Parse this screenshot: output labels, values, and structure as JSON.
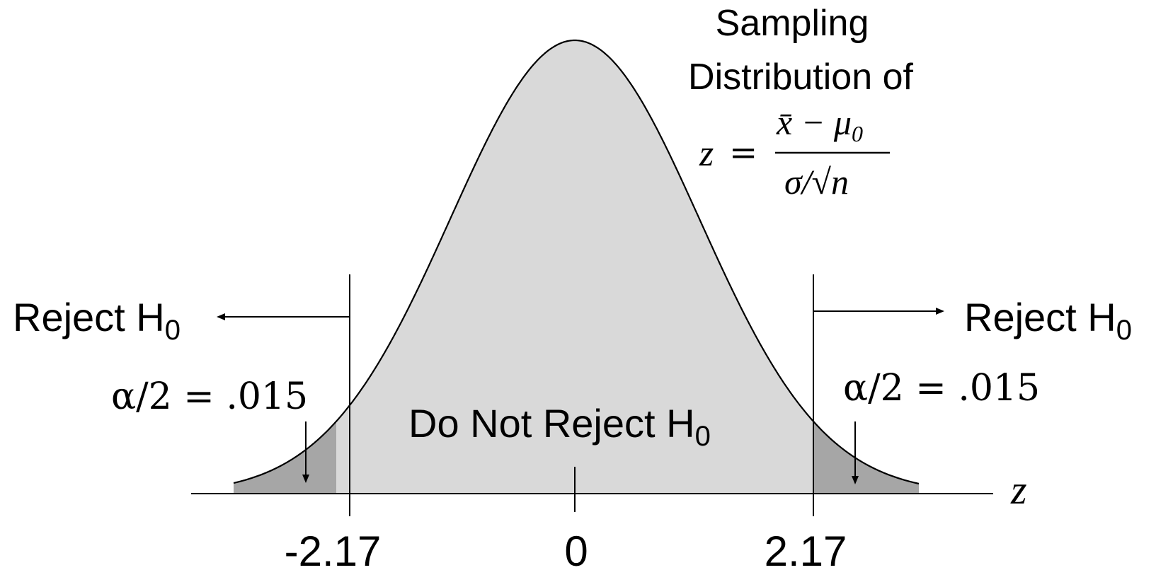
{
  "title_lines": [
    "Sampling",
    "Distribution of"
  ],
  "formula": {
    "lhs": "z",
    "equals": "=",
    "numerator": "x̄ − μ",
    "numerator_subscript": "0",
    "denominator": "σ/√n"
  },
  "left_region": {
    "label": "Reject H",
    "subscript": "0",
    "alpha": "α/2 = .015"
  },
  "right_region": {
    "label": "Reject H",
    "subscript": "0",
    "alpha": "α/2 = .015"
  },
  "center_region": {
    "label": "Do Not Reject H",
    "subscript": "0"
  },
  "axis": {
    "label": "z",
    "ticks": [
      "-2.17",
      "0",
      "2.17"
    ]
  },
  "colors": {
    "acceptance_fill": "#d9d9d9",
    "rejection_fill": "#a6a6a6",
    "stroke": "#000000"
  },
  "critical_value": 2.17,
  "alpha_tail": 0.015
}
